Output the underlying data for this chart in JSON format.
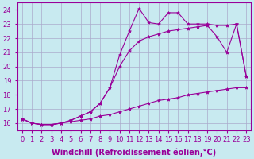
{
  "background_color": "#c8eaf0",
  "grid_color": "#aaaacc",
  "line_color": "#990099",
  "marker": "*",
  "marker_size": 3,
  "linewidth": 0.8,
  "xlabel": "Windchill (Refroidissement éolien,°C)",
  "xlabel_fontsize": 7,
  "tick_fontsize": 6,
  "xlim": [
    -0.5,
    23.5
  ],
  "ylim": [
    15.5,
    24.5
  ],
  "yticks": [
    16,
    17,
    18,
    19,
    20,
    21,
    22,
    23,
    24
  ],
  "xticks": [
    0,
    1,
    2,
    3,
    4,
    5,
    6,
    7,
    8,
    9,
    10,
    11,
    12,
    13,
    14,
    15,
    16,
    17,
    18,
    19,
    20,
    21,
    22,
    23
  ],
  "series": [
    [
      16.3,
      16.0,
      15.9,
      15.9,
      16.0,
      16.1,
      16.2,
      16.3,
      16.5,
      16.6,
      16.8,
      17.0,
      17.2,
      17.4,
      17.6,
      17.7,
      17.8,
      18.0,
      18.1,
      18.2,
      18.3,
      18.4,
      18.5,
      18.5
    ],
    [
      16.3,
      16.0,
      15.9,
      15.9,
      16.0,
      16.2,
      16.5,
      16.8,
      17.4,
      18.5,
      20.0,
      21.1,
      21.8,
      22.1,
      22.3,
      22.5,
      22.6,
      22.7,
      22.8,
      22.9,
      22.1,
      21.0,
      23.0,
      19.3
    ],
    [
      16.3,
      16.0,
      15.9,
      15.9,
      16.0,
      16.2,
      16.5,
      16.8,
      17.4,
      18.5,
      20.8,
      22.5,
      24.1,
      23.1,
      23.0,
      23.8,
      23.8,
      23.0,
      23.0,
      23.0,
      22.9,
      22.9,
      23.0,
      19.3
    ]
  ]
}
